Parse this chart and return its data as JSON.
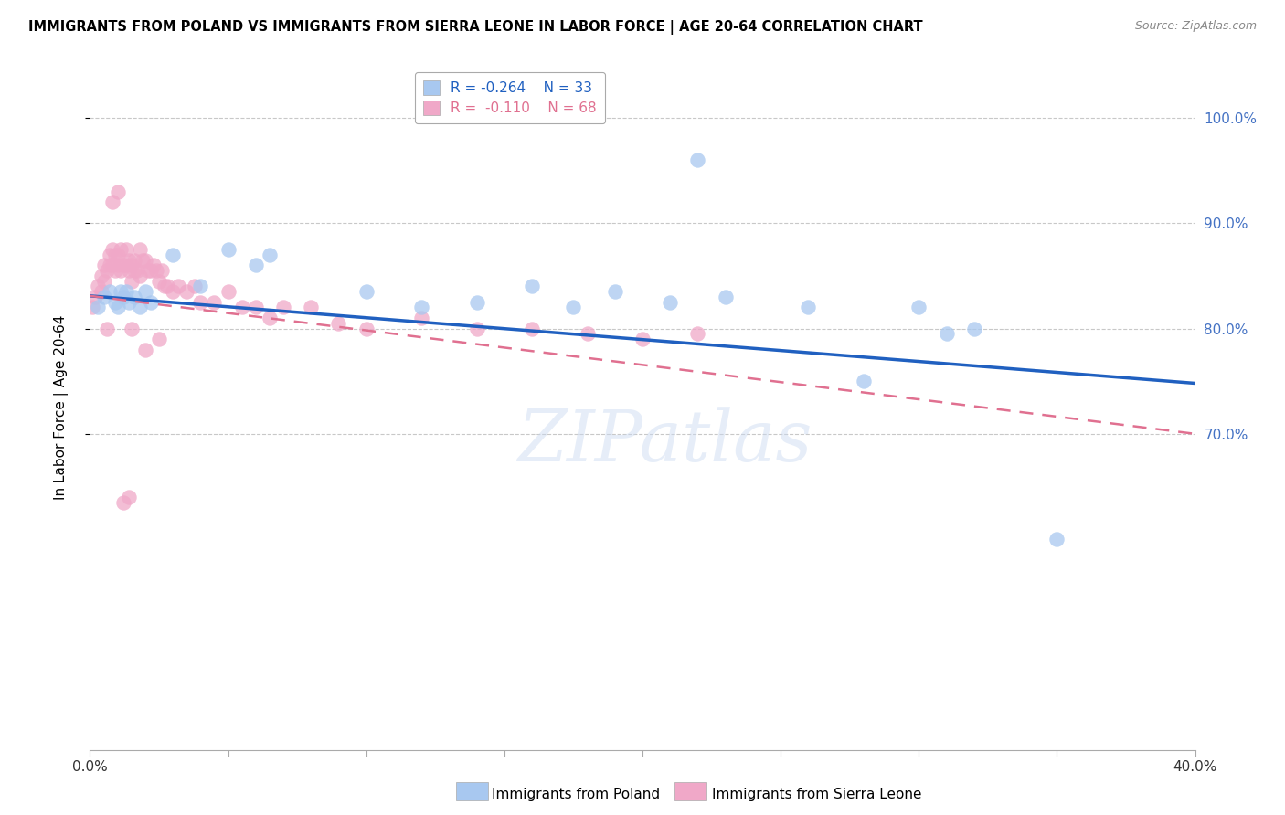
{
  "title": "IMMIGRANTS FROM POLAND VS IMMIGRANTS FROM SIERRA LEONE IN LABOR FORCE | AGE 20-64 CORRELATION CHART",
  "source": "Source: ZipAtlas.com",
  "ylabel": "In Labor Force | Age 20-64",
  "xlim": [
    0.0,
    0.4
  ],
  "ylim": [
    0.4,
    1.05
  ],
  "yticks": [
    1.0,
    0.9,
    0.8,
    0.7
  ],
  "xticks": [
    0.0,
    0.05,
    0.1,
    0.15,
    0.2,
    0.25,
    0.3,
    0.35,
    0.4
  ],
  "xtick_edge_labels": [
    "0.0%",
    "40.0%"
  ],
  "ytick_labels": [
    "100.0%",
    "90.0%",
    "80.0%",
    "70.0%"
  ],
  "poland_color": "#a8c8f0",
  "sierra_color": "#f0a8c8",
  "poland_line_color": "#2060c0",
  "sierra_line_color": "#e07090",
  "poland_R": "-0.264",
  "poland_N": "33",
  "sierra_R": "-0.110",
  "sierra_N": "68",
  "legend_label_poland": "Immigrants from Poland",
  "legend_label_sierra": "Immigrants from Sierra Leone",
  "watermark": "ZIPatlas",
  "poland_x": [
    0.003,
    0.005,
    0.007,
    0.009,
    0.01,
    0.011,
    0.012,
    0.013,
    0.014,
    0.016,
    0.018,
    0.02,
    0.022,
    0.03,
    0.04,
    0.05,
    0.06,
    0.065,
    0.1,
    0.12,
    0.14,
    0.16,
    0.175,
    0.19,
    0.21,
    0.23,
    0.26,
    0.28,
    0.3,
    0.31,
    0.32,
    0.35,
    0.22
  ],
  "poland_y": [
    0.82,
    0.83,
    0.835,
    0.825,
    0.82,
    0.835,
    0.83,
    0.835,
    0.825,
    0.83,
    0.82,
    0.835,
    0.825,
    0.87,
    0.84,
    0.875,
    0.86,
    0.87,
    0.835,
    0.82,
    0.825,
    0.84,
    0.82,
    0.835,
    0.825,
    0.83,
    0.82,
    0.75,
    0.82,
    0.795,
    0.8,
    0.6,
    0.96
  ],
  "sierra_x": [
    0.001,
    0.002,
    0.003,
    0.004,
    0.004,
    0.005,
    0.005,
    0.006,
    0.007,
    0.007,
    0.008,
    0.008,
    0.009,
    0.009,
    0.01,
    0.01,
    0.011,
    0.011,
    0.012,
    0.013,
    0.013,
    0.014,
    0.014,
    0.015,
    0.015,
    0.016,
    0.016,
    0.017,
    0.018,
    0.018,
    0.019,
    0.02,
    0.021,
    0.022,
    0.023,
    0.024,
    0.025,
    0.026,
    0.027,
    0.028,
    0.03,
    0.032,
    0.035,
    0.038,
    0.04,
    0.045,
    0.05,
    0.055,
    0.06,
    0.065,
    0.07,
    0.08,
    0.09,
    0.1,
    0.12,
    0.14,
    0.16,
    0.18,
    0.2,
    0.22,
    0.015,
    0.02,
    0.025,
    0.01,
    0.008,
    0.006,
    0.012,
    0.014
  ],
  "sierra_y": [
    0.82,
    0.83,
    0.84,
    0.85,
    0.835,
    0.845,
    0.86,
    0.855,
    0.86,
    0.87,
    0.875,
    0.86,
    0.87,
    0.855,
    0.87,
    0.86,
    0.855,
    0.875,
    0.86,
    0.875,
    0.86,
    0.865,
    0.855,
    0.86,
    0.845,
    0.855,
    0.865,
    0.855,
    0.85,
    0.875,
    0.865,
    0.865,
    0.855,
    0.855,
    0.86,
    0.855,
    0.845,
    0.855,
    0.84,
    0.84,
    0.835,
    0.84,
    0.835,
    0.84,
    0.825,
    0.825,
    0.835,
    0.82,
    0.82,
    0.81,
    0.82,
    0.82,
    0.805,
    0.8,
    0.81,
    0.8,
    0.8,
    0.795,
    0.79,
    0.795,
    0.8,
    0.78,
    0.79,
    0.93,
    0.92,
    0.8,
    0.635,
    0.64
  ]
}
